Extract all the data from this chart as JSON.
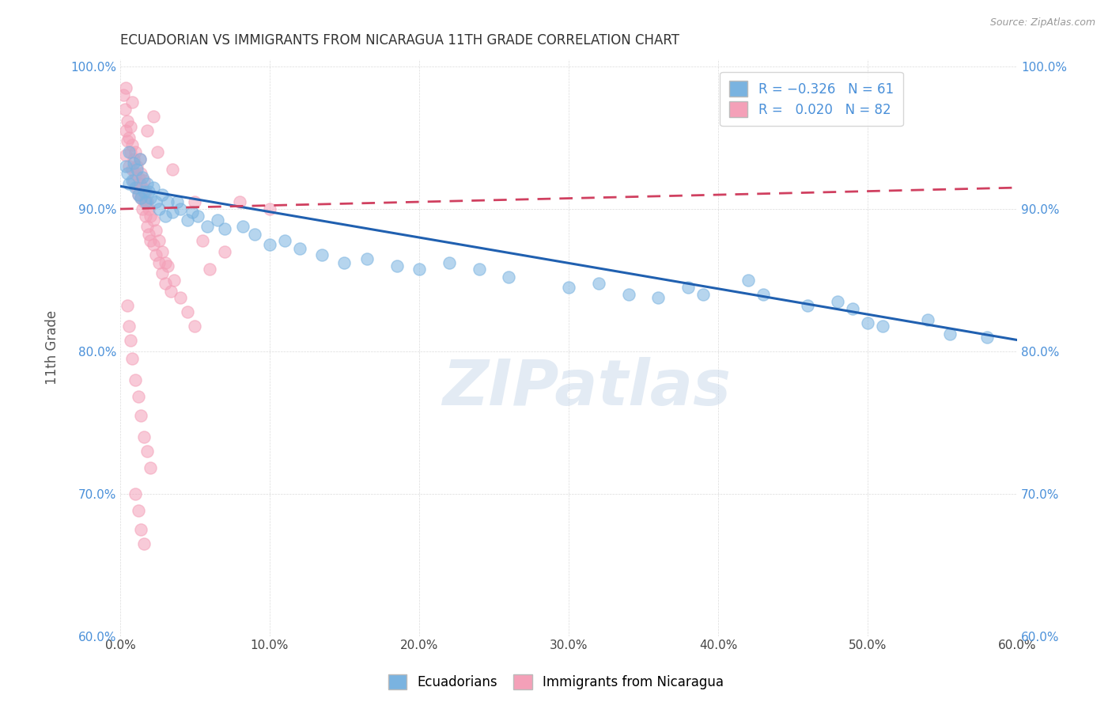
{
  "title": "ECUADORIAN VS IMMIGRANTS FROM NICARAGUA 11TH GRADE CORRELATION CHART",
  "source_text": "Source: ZipAtlas.com",
  "ylabel": "11th Grade",
  "xlim": [
    0.0,
    0.6
  ],
  "ylim": [
    0.6,
    1.005
  ],
  "xticks": [
    0.0,
    0.1,
    0.2,
    0.3,
    0.4,
    0.5,
    0.6
  ],
  "yticks": [
    0.6,
    0.7,
    0.8,
    0.9,
    1.0
  ],
  "xtick_labels": [
    "0.0%",
    "10.0%",
    "20.0%",
    "30.0%",
    "40.0%",
    "50.0%",
    "60.0%"
  ],
  "ytick_labels": [
    "60.0%",
    "70.0%",
    "80.0%",
    "90.0%",
    "100.0%"
  ],
  "legend_labels_bottom": [
    "Ecuadorians",
    "Immigrants from Nicaragua"
  ],
  "watermark": "ZIPatlas",
  "blue_color": "#7ab3e0",
  "pink_color": "#f4a0b8",
  "blue_trend_color": "#2060b0",
  "pink_trend_color": "#d04060",
  "blue_trend_x": [
    0.0,
    0.6
  ],
  "blue_trend_y": [
    0.916,
    0.808
  ],
  "pink_trend_x": [
    0.0,
    0.6
  ],
  "pink_trend_y": [
    0.9,
    0.915
  ],
  "blue_scatter": [
    [
      0.004,
      0.93
    ],
    [
      0.005,
      0.925
    ],
    [
      0.006,
      0.94
    ],
    [
      0.006,
      0.918
    ],
    [
      0.008,
      0.92
    ],
    [
      0.009,
      0.932
    ],
    [
      0.01,
      0.915
    ],
    [
      0.011,
      0.928
    ],
    [
      0.012,
      0.91
    ],
    [
      0.013,
      0.935
    ],
    [
      0.014,
      0.908
    ],
    [
      0.015,
      0.922
    ],
    [
      0.016,
      0.912
    ],
    [
      0.017,
      0.905
    ],
    [
      0.018,
      0.918
    ],
    [
      0.019,
      0.912
    ],
    [
      0.02,
      0.908
    ],
    [
      0.022,
      0.915
    ],
    [
      0.024,
      0.905
    ],
    [
      0.026,
      0.9
    ],
    [
      0.028,
      0.91
    ],
    [
      0.03,
      0.895
    ],
    [
      0.032,
      0.905
    ],
    [
      0.035,
      0.898
    ],
    [
      0.038,
      0.905
    ],
    [
      0.04,
      0.9
    ],
    [
      0.045,
      0.892
    ],
    [
      0.048,
      0.898
    ],
    [
      0.052,
      0.895
    ],
    [
      0.058,
      0.888
    ],
    [
      0.065,
      0.892
    ],
    [
      0.07,
      0.886
    ],
    [
      0.082,
      0.888
    ],
    [
      0.09,
      0.882
    ],
    [
      0.1,
      0.875
    ],
    [
      0.11,
      0.878
    ],
    [
      0.12,
      0.872
    ],
    [
      0.135,
      0.868
    ],
    [
      0.15,
      0.862
    ],
    [
      0.165,
      0.865
    ],
    [
      0.185,
      0.86
    ],
    [
      0.2,
      0.858
    ],
    [
      0.22,
      0.862
    ],
    [
      0.24,
      0.858
    ],
    [
      0.26,
      0.852
    ],
    [
      0.3,
      0.845
    ],
    [
      0.32,
      0.848
    ],
    [
      0.34,
      0.84
    ],
    [
      0.36,
      0.838
    ],
    [
      0.38,
      0.845
    ],
    [
      0.39,
      0.84
    ],
    [
      0.42,
      0.85
    ],
    [
      0.43,
      0.84
    ],
    [
      0.46,
      0.832
    ],
    [
      0.48,
      0.835
    ],
    [
      0.49,
      0.83
    ],
    [
      0.5,
      0.82
    ],
    [
      0.51,
      0.818
    ],
    [
      0.54,
      0.822
    ],
    [
      0.555,
      0.812
    ],
    [
      0.58,
      0.81
    ]
  ],
  "pink_scatter": [
    [
      0.002,
      0.98
    ],
    [
      0.003,
      0.97
    ],
    [
      0.004,
      0.955
    ],
    [
      0.004,
      0.938
    ],
    [
      0.005,
      0.962
    ],
    [
      0.005,
      0.948
    ],
    [
      0.006,
      0.95
    ],
    [
      0.006,
      0.93
    ],
    [
      0.007,
      0.958
    ],
    [
      0.007,
      0.94
    ],
    [
      0.008,
      0.945
    ],
    [
      0.008,
      0.928
    ],
    [
      0.009,
      0.935
    ],
    [
      0.009,
      0.92
    ],
    [
      0.01,
      0.94
    ],
    [
      0.01,
      0.925
    ],
    [
      0.011,
      0.93
    ],
    [
      0.011,
      0.915
    ],
    [
      0.012,
      0.922
    ],
    [
      0.012,
      0.91
    ],
    [
      0.013,
      0.935
    ],
    [
      0.013,
      0.918
    ],
    [
      0.014,
      0.925
    ],
    [
      0.014,
      0.908
    ],
    [
      0.015,
      0.915
    ],
    [
      0.015,
      0.9
    ],
    [
      0.016,
      0.92
    ],
    [
      0.016,
      0.905
    ],
    [
      0.017,
      0.912
    ],
    [
      0.017,
      0.895
    ],
    [
      0.018,
      0.905
    ],
    [
      0.018,
      0.888
    ],
    [
      0.019,
      0.9
    ],
    [
      0.019,
      0.882
    ],
    [
      0.02,
      0.895
    ],
    [
      0.02,
      0.878
    ],
    [
      0.022,
      0.892
    ],
    [
      0.022,
      0.875
    ],
    [
      0.024,
      0.885
    ],
    [
      0.024,
      0.868
    ],
    [
      0.026,
      0.878
    ],
    [
      0.026,
      0.862
    ],
    [
      0.028,
      0.87
    ],
    [
      0.028,
      0.855
    ],
    [
      0.03,
      0.862
    ],
    [
      0.03,
      0.848
    ],
    [
      0.032,
      0.86
    ],
    [
      0.034,
      0.842
    ],
    [
      0.036,
      0.85
    ],
    [
      0.04,
      0.838
    ],
    [
      0.045,
      0.828
    ],
    [
      0.05,
      0.818
    ],
    [
      0.005,
      0.832
    ],
    [
      0.006,
      0.818
    ],
    [
      0.007,
      0.808
    ],
    [
      0.008,
      0.795
    ],
    [
      0.01,
      0.78
    ],
    [
      0.012,
      0.768
    ],
    [
      0.014,
      0.755
    ],
    [
      0.016,
      0.74
    ],
    [
      0.018,
      0.73
    ],
    [
      0.02,
      0.718
    ],
    [
      0.01,
      0.7
    ],
    [
      0.012,
      0.688
    ],
    [
      0.014,
      0.675
    ],
    [
      0.016,
      0.665
    ],
    [
      0.004,
      0.985
    ],
    [
      0.05,
      0.905
    ],
    [
      0.08,
      0.905
    ],
    [
      0.1,
      0.9
    ],
    [
      0.055,
      0.878
    ],
    [
      0.07,
      0.87
    ],
    [
      0.06,
      0.858
    ],
    [
      0.025,
      0.94
    ],
    [
      0.035,
      0.928
    ],
    [
      0.018,
      0.955
    ],
    [
      0.022,
      0.965
    ],
    [
      0.008,
      0.975
    ]
  ]
}
